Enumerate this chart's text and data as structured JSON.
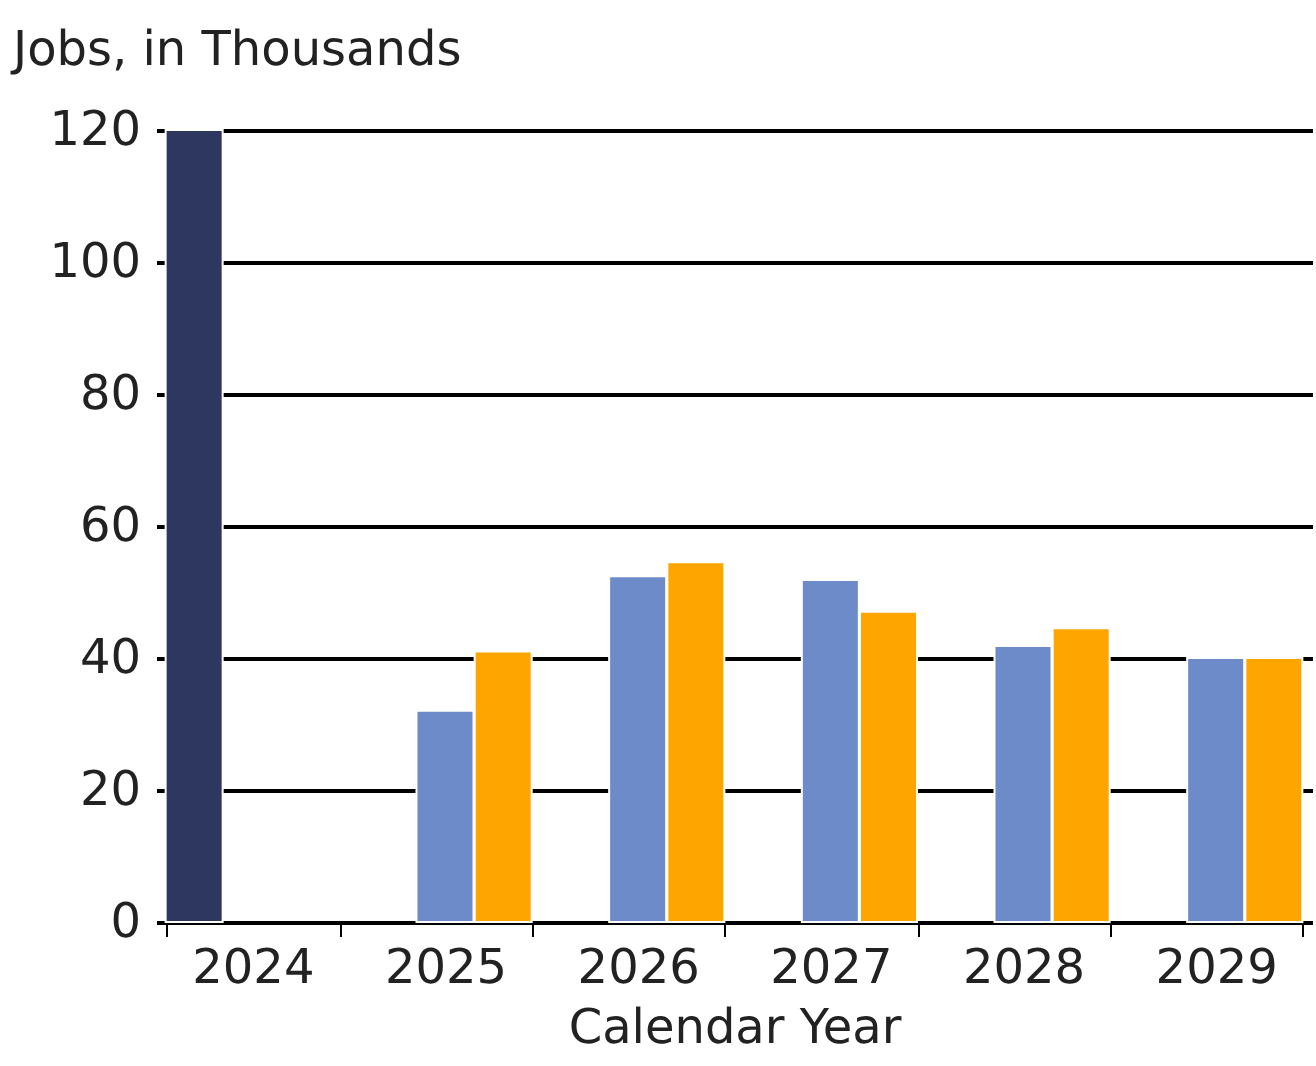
{
  "chart_data": {
    "type": "bar",
    "xlabel": "Calendar Year",
    "ylabel": "Jobs, in Thousands",
    "categories": [
      "2024",
      "2025",
      "2026",
      "2027",
      "2028",
      "2029"
    ],
    "series": [
      {
        "color": "#2e3760",
        "values": [
          120,
          null,
          null,
          null,
          null,
          null
        ]
      },
      {
        "color": "#6d8bc8",
        "values": [
          null,
          32,
          52.4,
          51.8,
          41.8,
          40
        ]
      },
      {
        "color": "#ffa500",
        "values": [
          null,
          41,
          54.5,
          47,
          44.5,
          40
        ]
      }
    ],
    "ylim": [
      0,
      120
    ],
    "yticks": [
      0,
      20,
      40,
      60,
      80,
      100,
      120
    ],
    "grid": "y",
    "legend": false
  }
}
